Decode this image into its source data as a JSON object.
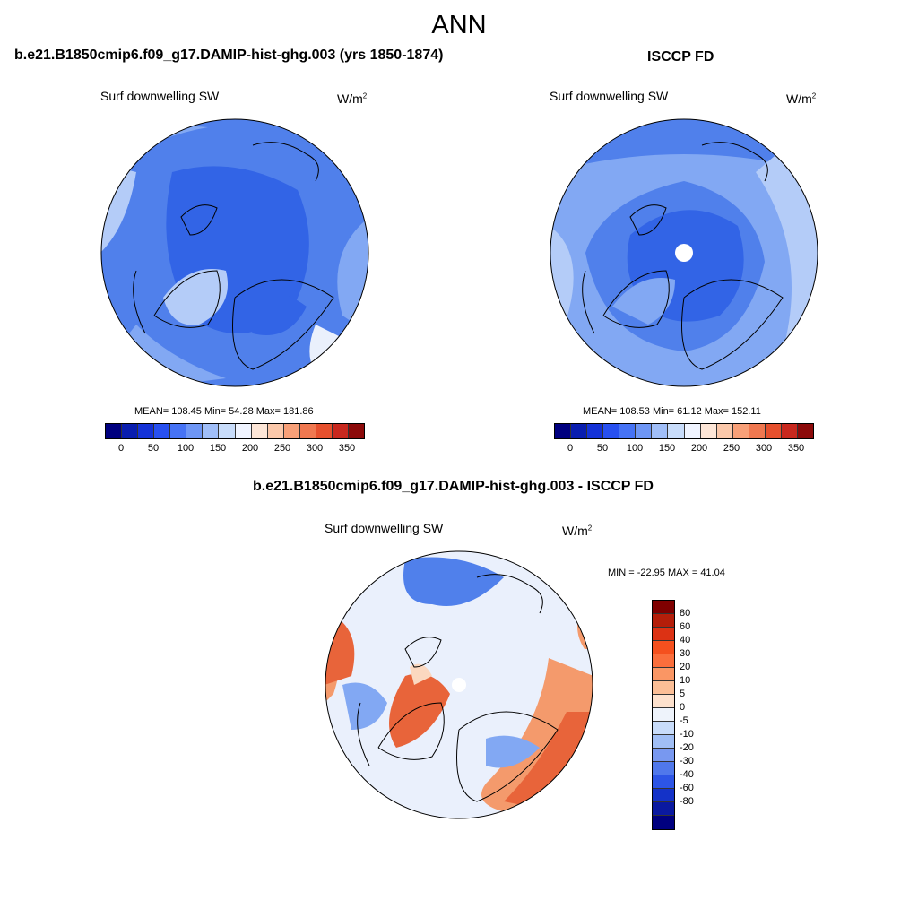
{
  "title": "ANN",
  "panels": [
    {
      "title": "b.e21.B1850cmip6.f09_g17.DAMIP-hist-ghg.003 (yrs 1850-1874)",
      "variable": "Surf downwelling SW",
      "unit_base": "W/m",
      "unit_exp": "2",
      "stats": "MEAN= 108.45  Min=  54.28  Max= 181.86",
      "mean": 108.45,
      "min": 54.28,
      "max": 181.86
    },
    {
      "title": "ISCCP FD",
      "variable": "Surf downwelling SW",
      "unit_base": "W/m",
      "unit_exp": "2",
      "stats": "MEAN= 108.53  Min=  61.12  Max= 152.11",
      "mean": 108.53,
      "min": 61.12,
      "max": 152.11
    },
    {
      "title": "b.e21.B1850cmip6.f09_g17.DAMIP-hist-ghg.003 - ISCCP FD",
      "variable": "Surf downwelling SW",
      "unit_base": "W/m",
      "unit_exp": "2",
      "stats": "MIN = -22.95 MAX =  41.04",
      "min": -22.95,
      "max": 41.04
    }
  ],
  "abs_colorbar": {
    "colors": [
      "#00007f",
      "#0a1eaf",
      "#1432d7",
      "#2850f0",
      "#4673f5",
      "#6e96f5",
      "#a0bef8",
      "#c8dcfa",
      "#f0f4ff",
      "#fde6d7",
      "#fbc8aa",
      "#f8a078",
      "#f07850",
      "#e6502d",
      "#c8281e",
      "#8c0a0a"
    ],
    "labels": [
      "0",
      "50",
      "100",
      "150",
      "200",
      "250",
      "300",
      "350"
    ]
  },
  "diff_colorbar": {
    "colors": [
      "#7f0000",
      "#b41e0a",
      "#dc3214",
      "#f5501e",
      "#fa6e3c",
      "#fa9664",
      "#fbbe96",
      "#fde1cd",
      "#eef3fb",
      "#c8dcfa",
      "#a0bef5",
      "#7898f0",
      "#5078eb",
      "#2d55e6",
      "#1432c8",
      "#0a19a0",
      "#00007f"
    ],
    "labels": [
      "80",
      "60",
      "40",
      "30",
      "20",
      "10",
      "5",
      "0",
      "-5",
      "-10",
      "-20",
      "-30",
      "-40",
      "-60",
      "-80"
    ]
  },
  "map_colors": {
    "deep_blue": "#3264e6",
    "mid_blue": "#5080eb",
    "light_blue": "#82a8f3",
    "pale_blue": "#b4ccf8",
    "near_white": "#eaf0fc",
    "pale_orange": "#fbd8c0",
    "orange": "#f49a6c",
    "red_orange": "#e8643a",
    "missing": "#ffffff"
  }
}
